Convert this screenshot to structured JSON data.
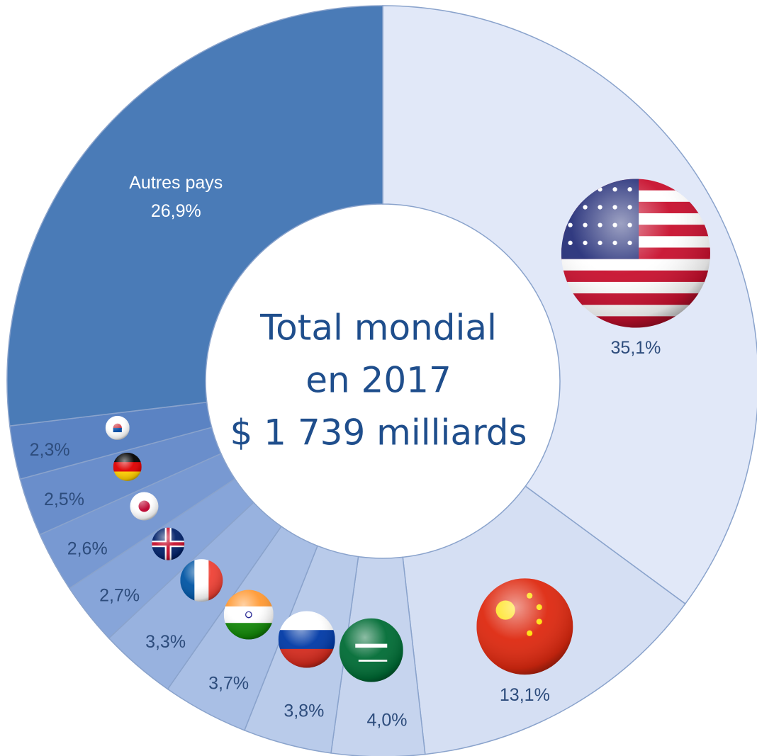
{
  "chart_data": {
    "type": "donut",
    "title": [
      "Total mondial",
      "en 2017",
      "$ 1 739 milliards"
    ],
    "categories": [
      null,
      null,
      null,
      null,
      null,
      null,
      null,
      null,
      null,
      null,
      "Autres pays"
    ],
    "values": [
      35.1,
      13.1,
      4.0,
      3.8,
      3.7,
      3.3,
      2.7,
      2.6,
      2.5,
      2.3,
      26.9
    ],
    "value_labels": [
      "35,1%",
      "13,1%",
      "4,0%",
      "3,8%",
      "3,7%",
      "3,3%",
      "2,7%",
      "2,6%",
      "2,5%",
      "2,3%",
      "26,9%"
    ],
    "colors": [
      "#e1e8f8",
      "#d5dff3",
      "#c6d4ee",
      "#b9cbea",
      "#a9bfe5",
      "#98b2df",
      "#87a5d9",
      "#7899d2",
      "#6a8ecb",
      "#5b83c3",
      "#4a7bb7"
    ]
  }
}
